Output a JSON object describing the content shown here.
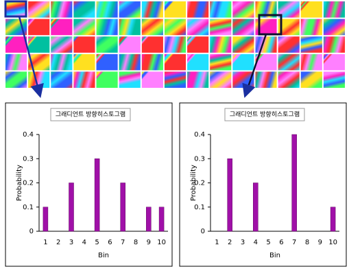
{
  "chart_data": [
    {
      "type": "bar",
      "title": "그래디언트 방향히스토그램",
      "y_label": "Probability",
      "x_label": "Bin",
      "categories": [
        "1",
        "2",
        "3",
        "4",
        "5",
        "6",
        "7",
        "8",
        "9",
        "10"
      ],
      "values": [
        0.1,
        0,
        0.2,
        0,
        0.3,
        0,
        0.2,
        0,
        0.1,
        0.1
      ],
      "color": "#a010a8",
      "ylim": [
        0,
        0.4
      ],
      "yticks": [
        0,
        0.1,
        0.2,
        0.3,
        0.4
      ]
    },
    {
      "type": "bar",
      "title": "그래디언트 방향히스토그램",
      "y_label": "Probability",
      "x_label": "Bin",
      "categories": [
        "1",
        "2",
        "3",
        "4",
        "5",
        "6",
        "7",
        "8",
        "9",
        "10"
      ],
      "values": [
        0,
        0.3,
        0,
        0.2,
        0,
        0,
        0.4,
        0,
        0,
        0.1
      ],
      "color": "#a010a8",
      "ylim": [
        0,
        0.4
      ],
      "yticks": [
        0,
        0.1,
        0.2,
        0.3,
        0.4
      ]
    }
  ]
}
